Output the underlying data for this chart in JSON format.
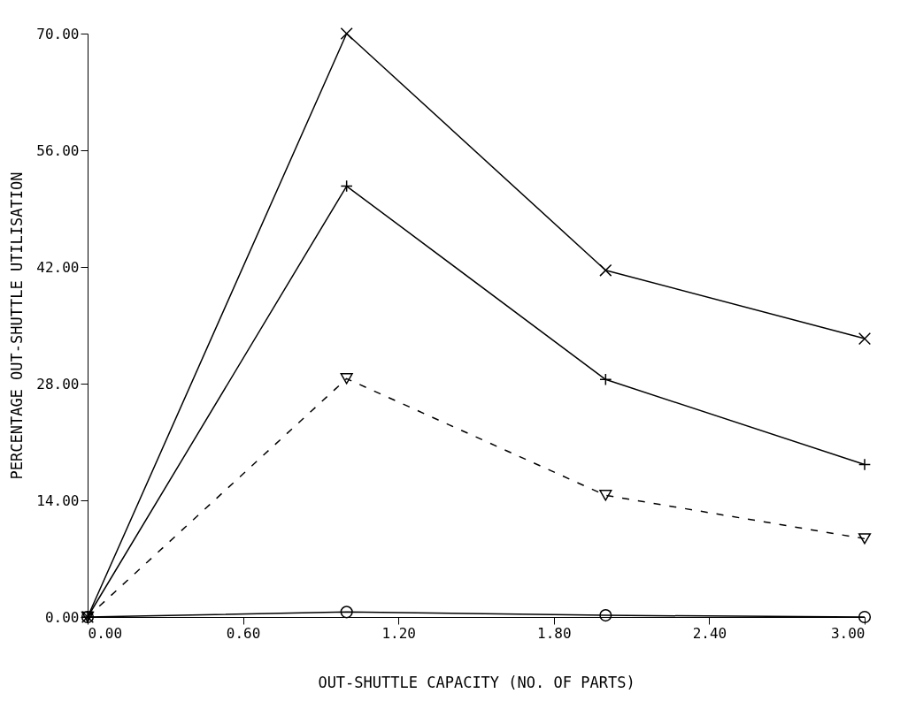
{
  "chart_data": {
    "type": "line",
    "xlabel": "OUT-SHUTTLE CAPACITY (NO. OF PARTS)",
    "ylabel": "PERCENTAGE OUT-SHUTTLE UTILISATION",
    "x": [
      0,
      1,
      2,
      3
    ],
    "series": [
      {
        "color": "#000000",
        "marker": "cross",
        "line_style": "solid",
        "values": [
          0,
          70,
          41.6,
          33.4
        ]
      },
      {
        "color": "#000000",
        "marker": "plus",
        "line_style": "solid",
        "values": [
          0,
          51.7,
          28.5,
          18.3
        ]
      },
      {
        "color": "#000000",
        "marker": "triangle",
        "line_style": "dashed",
        "values": [
          0,
          28.6,
          14.6,
          9.4
        ]
      },
      {
        "color": "#000000",
        "marker": "circle",
        "line_style": "solid",
        "values": [
          0,
          0.6,
          0.2,
          0
        ]
      }
    ],
    "xlim": [
      0,
      3
    ],
    "xticks": [
      {
        "value": 0,
        "label": "0.00"
      },
      {
        "value": 0.6,
        "label": "0.60"
      },
      {
        "value": 1.2,
        "label": "1.20"
      },
      {
        "value": 1.8,
        "label": "1.80"
      },
      {
        "value": 2.4,
        "label": "2.40"
      },
      {
        "value": 3,
        "label": "3.00"
      }
    ],
    "ylim": [
      0,
      70
    ],
    "yticks": [
      {
        "value": 0,
        "label": "0.00"
      },
      {
        "value": 14,
        "label": "14.00"
      },
      {
        "value": 28,
        "label": "28.00"
      },
      {
        "value": 42,
        "label": "42.00"
      },
      {
        "value": 56,
        "label": "56.00"
      },
      {
        "value": 70,
        "label": "70.00"
      }
    ],
    "grid": false
  }
}
